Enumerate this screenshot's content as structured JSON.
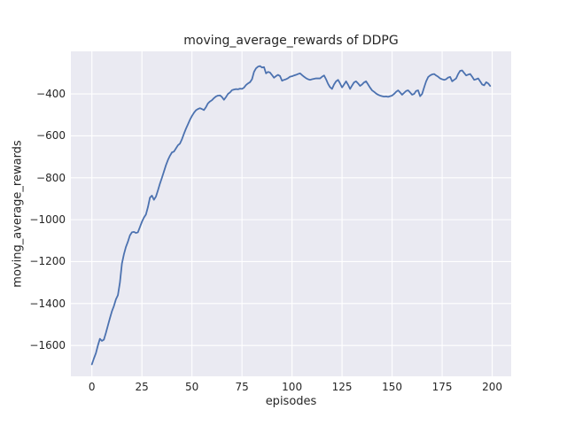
{
  "figure": {
    "background": "#ffffff"
  },
  "chart_data": {
    "type": "line",
    "title": "moving_average_rewards of DDPG",
    "xlabel": "episodes",
    "ylabel": "moving_average_rewards",
    "legend": false,
    "grid": true,
    "plot_bg_color": "#eaeaf2",
    "grid_color": "#ffffff",
    "text_color": "#262626",
    "xlim": [
      -10.5,
      209.5
    ],
    "ylim": [
      -1747,
      -197
    ],
    "x_ticks": [
      0,
      25,
      50,
      75,
      100,
      125,
      150,
      175,
      200
    ],
    "y_ticks": [
      -400,
      -600,
      -800,
      -1000,
      -1200,
      -1400,
      -1600
    ],
    "x_start": 0,
    "x_step": 1,
    "series": [
      {
        "name": "moving_average_rewards",
        "color": "#4c72b0",
        "line_width": 1.8,
        "values": [
          -1690,
          -1662,
          -1637,
          -1600,
          -1568,
          -1578,
          -1572,
          -1540,
          -1505,
          -1470,
          -1437,
          -1412,
          -1380,
          -1360,
          -1300,
          -1210,
          -1165,
          -1130,
          -1105,
          -1075,
          -1060,
          -1058,
          -1063,
          -1060,
          -1035,
          -1010,
          -990,
          -975,
          -940,
          -895,
          -885,
          -905,
          -890,
          -860,
          -828,
          -800,
          -770,
          -740,
          -715,
          -695,
          -679,
          -675,
          -660,
          -645,
          -637,
          -616,
          -590,
          -566,
          -545,
          -523,
          -505,
          -490,
          -478,
          -472,
          -468,
          -472,
          -477,
          -463,
          -445,
          -436,
          -430,
          -420,
          -412,
          -408,
          -407,
          -415,
          -428,
          -415,
          -400,
          -393,
          -382,
          -379,
          -377,
          -378,
          -375,
          -376,
          -370,
          -358,
          -350,
          -344,
          -330,
          -295,
          -278,
          -270,
          -267,
          -274,
          -272,
          -302,
          -295,
          -298,
          -310,
          -323,
          -315,
          -309,
          -315,
          -337,
          -333,
          -330,
          -325,
          -318,
          -316,
          -312,
          -309,
          -305,
          -302,
          -310,
          -318,
          -325,
          -330,
          -333,
          -330,
          -328,
          -326,
          -326,
          -326,
          -318,
          -312,
          -330,
          -352,
          -368,
          -376,
          -355,
          -340,
          -333,
          -350,
          -369,
          -355,
          -340,
          -356,
          -376,
          -360,
          -345,
          -340,
          -350,
          -362,
          -355,
          -345,
          -340,
          -355,
          -370,
          -383,
          -390,
          -398,
          -404,
          -408,
          -411,
          -413,
          -412,
          -414,
          -411,
          -408,
          -400,
          -390,
          -383,
          -393,
          -404,
          -395,
          -386,
          -383,
          -393,
          -404,
          -400,
          -386,
          -383,
          -411,
          -400,
          -369,
          -340,
          -320,
          -312,
          -307,
          -305,
          -312,
          -318,
          -326,
          -330,
          -333,
          -330,
          -322,
          -319,
          -340,
          -333,
          -326,
          -305,
          -290,
          -288,
          -300,
          -312,
          -308,
          -305,
          -318,
          -333,
          -330,
          -326,
          -340,
          -355,
          -359,
          -344,
          -350,
          -362
        ]
      }
    ]
  }
}
